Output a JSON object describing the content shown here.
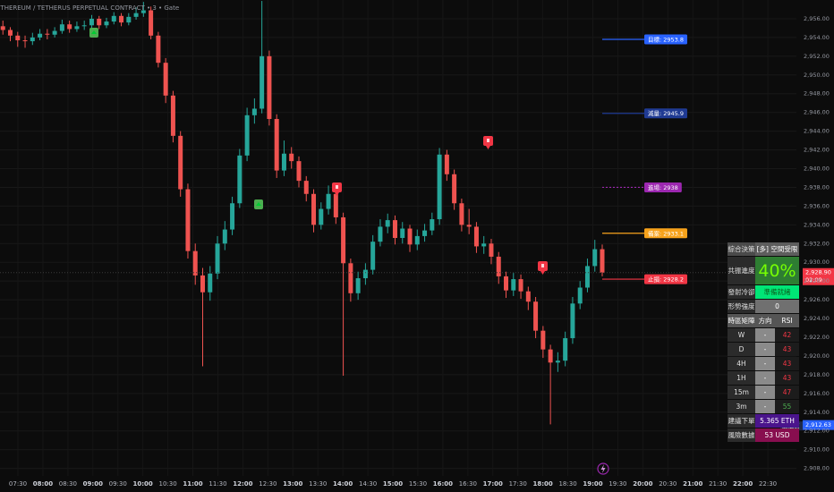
{
  "chart_data": {
    "type": "candlestick",
    "title": "ETHEREUM / TETHERUS PERPETUAL CONTRACT • 3 • Gate",
    "up_color": "#26a69a",
    "down_color": "#ef5350",
    "grid": true,
    "xlim": [
      7.142,
      23.072
    ],
    "ylim": [
      2907.2,
      2958.0
    ],
    "x": [
      7.2,
      7.348,
      7.496,
      7.644,
      7.792,
      7.94,
      8.088,
      8.236,
      8.384,
      8.532,
      8.68,
      8.828,
      8.976,
      9.124,
      9.272,
      9.42,
      9.568,
      9.716,
      9.864,
      10.012,
      10.16,
      10.308,
      10.456,
      10.604,
      10.752,
      10.9,
      11.048,
      11.196,
      11.344,
      11.492,
      11.64,
      11.788,
      11.936,
      12.084,
      12.232,
      12.38,
      12.528,
      12.676,
      12.824,
      12.972,
      13.12,
      13.268,
      13.416,
      13.564,
      13.712,
      13.86,
      14.008,
      14.156,
      14.304,
      14.452,
      14.6,
      14.748,
      14.896,
      15.044,
      15.192,
      15.34,
      15.488,
      15.636,
      15.784,
      15.932,
      16.08,
      16.228,
      16.376,
      16.524,
      16.672,
      16.82,
      16.968,
      17.116,
      17.264,
      17.412,
      17.56,
      17.708,
      17.856,
      18.004,
      18.152,
      18.3,
      18.448,
      18.596,
      18.744,
      18.892,
      19.04,
      19.188
    ],
    "ohlc": [
      [
        2955.2,
        2955.8,
        2954.3,
        2954.8
      ],
      [
        2954.8,
        2955.1,
        2953.6,
        2954.2
      ],
      [
        2954.2,
        2954.6,
        2953.0,
        2953.7
      ],
      [
        2953.7,
        2954.2,
        2952.9,
        2953.6
      ],
      [
        2953.6,
        2954.5,
        2953.2,
        2954.0
      ],
      [
        2954.0,
        2954.9,
        2953.7,
        2954.4
      ],
      [
        2954.4,
        2954.9,
        2953.8,
        2954.3
      ],
      [
        2954.3,
        2955.1,
        2954.0,
        2954.7
      ],
      [
        2954.7,
        2955.9,
        2954.4,
        2955.4
      ],
      [
        2955.4,
        2955.8,
        2954.5,
        2954.9
      ],
      [
        2954.9,
        2955.7,
        2954.6,
        2955.2
      ],
      [
        2955.2,
        2955.8,
        2954.8,
        2955.3
      ],
      [
        2955.3,
        2956.4,
        2955.0,
        2956.0
      ],
      [
        2956.0,
        2956.3,
        2954.9,
        2955.3
      ],
      [
        2955.3,
        2956.1,
        2955.0,
        2955.7
      ],
      [
        2955.7,
        2956.7,
        2955.4,
        2956.3
      ],
      [
        2956.3,
        2956.6,
        2955.2,
        2955.6
      ],
      [
        2955.6,
        2956.6,
        2955.3,
        2956.2
      ],
      [
        2956.2,
        2957.2,
        2955.9,
        2956.6
      ],
      [
        2956.6,
        2957.8,
        2956.2,
        2956.9
      ],
      [
        2956.9,
        2957.3,
        2953.8,
        2954.2
      ],
      [
        2954.2,
        2954.6,
        2950.8,
        2951.3
      ],
      [
        2951.3,
        2951.8,
        2947.0,
        2947.8
      ],
      [
        2947.8,
        2948.3,
        2942.8,
        2943.5
      ],
      [
        2943.5,
        2944.0,
        2937.0,
        2937.8
      ],
      [
        2937.8,
        2938.4,
        2930.4,
        2931.2
      ],
      [
        2931.2,
        2932.0,
        2927.6,
        2928.6
      ],
      [
        2928.6,
        2929.4,
        2918.9,
        2926.8
      ],
      [
        2926.8,
        2929.6,
        2925.9,
        2928.8
      ],
      [
        2928.8,
        2932.8,
        2928.2,
        2932.0
      ],
      [
        2932.0,
        2934.4,
        2931.3,
        2933.5
      ],
      [
        2933.5,
        2937.0,
        2932.9,
        2936.3
      ],
      [
        2936.3,
        2942.1,
        2935.8,
        2941.4
      ],
      [
        2941.4,
        2946.5,
        2940.8,
        2945.7
      ],
      [
        2945.7,
        2947.5,
        2944.8,
        2946.4
      ],
      [
        2946.4,
        2957.9,
        2945.9,
        2952.0
      ],
      [
        2952.0,
        2952.6,
        2944.6,
        2945.3
      ],
      [
        2945.3,
        2945.8,
        2939.0,
        2939.8
      ],
      [
        2939.8,
        2943.0,
        2939.2,
        2941.6
      ],
      [
        2941.6,
        2942.3,
        2940.0,
        2940.8
      ],
      [
        2940.8,
        2941.3,
        2938.0,
        2938.7
      ],
      [
        2938.7,
        2939.2,
        2936.5,
        2937.3
      ],
      [
        2937.3,
        2937.8,
        2933.2,
        2934.0
      ],
      [
        2934.0,
        2936.4,
        2933.5,
        2935.7
      ],
      [
        2935.7,
        2938.2,
        2935.1,
        2937.3
      ],
      [
        2937.3,
        2937.9,
        2934.1,
        2934.8
      ],
      [
        2934.8,
        2935.3,
        2917.9,
        2929.9
      ],
      [
        2929.9,
        2930.4,
        2925.8,
        2926.7
      ],
      [
        2926.7,
        2929.0,
        2926.0,
        2928.3
      ],
      [
        2928.3,
        2929.9,
        2927.6,
        2929.2
      ],
      [
        2929.2,
        2932.9,
        2928.7,
        2932.2
      ],
      [
        2932.2,
        2934.6,
        2931.7,
        2933.8
      ],
      [
        2933.8,
        2935.2,
        2933.1,
        2934.5
      ],
      [
        2934.5,
        2935.0,
        2931.9,
        2932.6
      ],
      [
        2932.6,
        2934.3,
        2932.0,
        2933.6
      ],
      [
        2933.6,
        2934.0,
        2931.1,
        2931.9
      ],
      [
        2931.9,
        2933.5,
        2931.3,
        2932.8
      ],
      [
        2932.8,
        2934.1,
        2932.2,
        2933.4
      ],
      [
        2933.4,
        2935.3,
        2932.9,
        2934.6
      ],
      [
        2934.6,
        2942.2,
        2934.0,
        2941.5
      ],
      [
        2941.5,
        2942.0,
        2938.7,
        2939.4
      ],
      [
        2939.4,
        2939.9,
        2935.6,
        2936.3
      ],
      [
        2936.3,
        2936.8,
        2933.3,
        2934.0
      ],
      [
        2934.0,
        2935.7,
        2933.0,
        2933.8
      ],
      [
        2933.8,
        2934.3,
        2931.0,
        2931.7
      ],
      [
        2931.7,
        2932.8,
        2930.9,
        2932.0
      ],
      [
        2932.0,
        2932.5,
        2929.8,
        2930.6
      ],
      [
        2930.6,
        2931.1,
        2927.7,
        2928.5
      ],
      [
        2928.5,
        2929.0,
        2926.2,
        2927.0
      ],
      [
        2927.0,
        2928.9,
        2926.4,
        2928.2
      ],
      [
        2928.2,
        2928.7,
        2926.1,
        2926.9
      ],
      [
        2926.9,
        2927.4,
        2924.9,
        2925.8
      ],
      [
        2925.8,
        2926.3,
        2921.9,
        2922.7
      ],
      [
        2922.7,
        2923.2,
        2919.8,
        2920.7
      ],
      [
        2920.7,
        2921.2,
        2912.7,
        2919.3
      ],
      [
        2919.3,
        2920.4,
        2918.3,
        2919.5
      ],
      [
        2919.5,
        2922.6,
        2918.9,
        2921.9
      ],
      [
        2921.9,
        2926.3,
        2921.3,
        2925.6
      ],
      [
        2925.6,
        2928.0,
        2925.0,
        2927.3
      ],
      [
        2927.3,
        2930.4,
        2926.8,
        2929.6
      ],
      [
        2929.6,
        2932.4,
        2929.0,
        2931.4
      ],
      [
        2931.4,
        2931.9,
        2928.5,
        2928.9
      ]
    ],
    "yticks": [
      {
        "value": 2908,
        "label": "2,908.00"
      },
      {
        "value": 2910,
        "label": "2,910.00"
      },
      {
        "value": 2912,
        "label": "2,912.00"
      },
      {
        "value": 2914,
        "label": "2,914.00"
      },
      {
        "value": 2916,
        "label": "2,916.00"
      },
      {
        "value": 2918,
        "label": "2,918.00"
      },
      {
        "value": 2920,
        "label": "2,920.00"
      },
      {
        "value": 2922,
        "label": "2,922.00"
      },
      {
        "value": 2924,
        "label": "2,924.00"
      },
      {
        "value": 2926,
        "label": "2,926.00"
      },
      {
        "value": 2928,
        "label": "2,928.00"
      },
      {
        "value": 2930,
        "label": "2,930.00"
      },
      {
        "value": 2932,
        "label": "2,932.00"
      },
      {
        "value": 2934,
        "label": "2,934.00"
      },
      {
        "value": 2936,
        "label": "2,936.00"
      },
      {
        "value": 2938,
        "label": "2,938.00"
      },
      {
        "value": 2940,
        "label": "2,940.00"
      },
      {
        "value": 2942,
        "label": "2,942.00"
      },
      {
        "value": 2944,
        "label": "2,944.00"
      },
      {
        "value": 2946,
        "label": "2,946.00"
      },
      {
        "value": 2948,
        "label": "2,948.00"
      },
      {
        "value": 2950,
        "label": "2,950.00"
      },
      {
        "value": 2952,
        "label": "2,952.00"
      },
      {
        "value": 2954,
        "label": "2,954.00"
      },
      {
        "value": 2956,
        "label": "2,956.00"
      }
    ],
    "xticks": [
      {
        "value": 7.5,
        "label": "07:30"
      },
      {
        "value": 8,
        "label": "08:00"
      },
      {
        "value": 8.5,
        "label": "08:30"
      },
      {
        "value": 9,
        "label": "09:00"
      },
      {
        "value": 9.5,
        "label": "09:30"
      },
      {
        "value": 10,
        "label": "10:00"
      },
      {
        "value": 10.5,
        "label": "10:30"
      },
      {
        "value": 11,
        "label": "11:00"
      },
      {
        "value": 11.5,
        "label": "11:30"
      },
      {
        "value": 12,
        "label": "12:00"
      },
      {
        "value": 12.5,
        "label": "12:30"
      },
      {
        "value": 13,
        "label": "13:00"
      },
      {
        "value": 13.5,
        "label": "13:30"
      },
      {
        "value": 14,
        "label": "14:00"
      },
      {
        "value": 14.5,
        "label": "14:30"
      },
      {
        "value": 15,
        "label": "15:00"
      },
      {
        "value": 15.5,
        "label": "15:30"
      },
      {
        "value": 16,
        "label": "16:00"
      },
      {
        "value": 16.5,
        "label": "16:30"
      },
      {
        "value": 17,
        "label": "17:00"
      },
      {
        "value": 17.5,
        "label": "17:30"
      },
      {
        "value": 18,
        "label": "18:00"
      },
      {
        "value": 18.5,
        "label": "18:30"
      },
      {
        "value": 19,
        "label": "19:00"
      },
      {
        "value": 19.5,
        "label": "19:30"
      },
      {
        "value": 20,
        "label": "20:00"
      },
      {
        "value": 20.5,
        "label": "20:30"
      },
      {
        "value": 21,
        "label": "21:00"
      },
      {
        "value": 21.5,
        "label": "21:30"
      },
      {
        "value": 22,
        "label": "22:00"
      },
      {
        "value": 22.5,
        "label": "22:30"
      }
    ],
    "levels": [
      {
        "label": "目標: 2953.8",
        "value": 2953.8,
        "color": "#2962ff",
        "line": "solid"
      },
      {
        "label": "減量: 2945.9",
        "value": 2945.9,
        "color": "#1f3a93",
        "line": "solid"
      },
      {
        "label": "進場: 2938",
        "value": 2938,
        "color": "#9c27b0",
        "line": "dotted"
      },
      {
        "label": "備案: 2933.1",
        "value": 2933.1,
        "color": "#f7a21b",
        "line": "solid"
      },
      {
        "label": "止損: 2928.2",
        "value": 2928.2,
        "color": "#f23645",
        "line": "solid"
      }
    ],
    "last_price": {
      "value": 2928.9,
      "label": "2,928.90",
      "countdown": "02:09",
      "color": "#f23645"
    },
    "low_marker": {
      "value": 2912.63,
      "label": "2,912.63",
      "text": "最低價",
      "color": "#2962ff"
    }
  },
  "panel": {
    "rows": [
      [
        "綜合決策",
        "[多] 空間受限"
      ],
      [
        "共振進度",
        "40%"
      ],
      [
        "發射冷卻",
        "準備就緒"
      ],
      [
        "形勢強度",
        0
      ],
      [
        "時區矩陣",
        "方向",
        "RSI"
      ],
      [
        "W",
        "-",
        42
      ],
      [
        "D",
        "-",
        43
      ],
      [
        "4H",
        "-",
        43
      ],
      [
        "1H",
        "-",
        43
      ],
      [
        "15m",
        "-",
        47
      ],
      [
        "3m",
        "-",
        55
      ],
      [
        "建議下單",
        "5.365 ETH"
      ],
      [
        "風險數據",
        "53 USD"
      ]
    ]
  }
}
